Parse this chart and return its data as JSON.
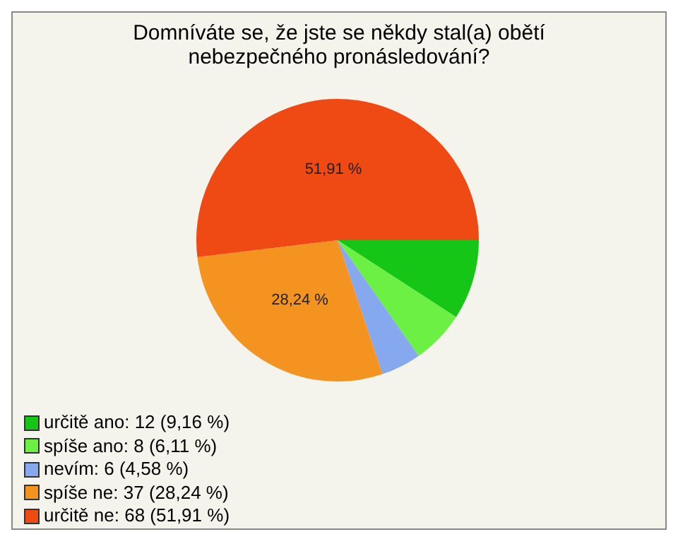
{
  "chart_data": {
    "type": "pie",
    "title": "Domníváte se, že jste se někdy stal(a) obětí nebezpečného pronásledování?",
    "categories": [
      "určitě ano: 12 (9,16 %)",
      "spíše ano: 8 (6,11 %)",
      "nevím: 6 (4,58 %)",
      "spíše ne: 37 (28,24 %)",
      "určitě ne: 68 (51,91 %)"
    ],
    "values": [
      9.16,
      6.11,
      4.58,
      28.24,
      51.91
    ],
    "colors": [
      "#16c616",
      "#6cf044",
      "#86a8ee",
      "#f59320",
      "#ef4a14"
    ],
    "value_labels": [
      null,
      null,
      null,
      "28,24 %",
      "51,91 %"
    ],
    "legend": "bottom left"
  }
}
